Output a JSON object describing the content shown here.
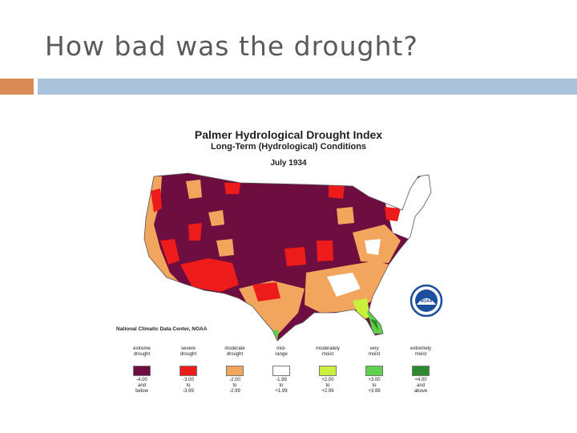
{
  "slide": {
    "title": "How bad was the drought?"
  },
  "map": {
    "title": "Palmer Hydrological Drought Index",
    "subtitle": "Long-Term (Hydrological) Conditions",
    "date": "July 1934",
    "credit": "National Climatic Data Center, NOAA",
    "logo_text": "NOAA"
  },
  "legend": [
    {
      "label": "extreme\ndrought",
      "range": "-4.00\nand\nbelow",
      "color": "#6e0d3f"
    },
    {
      "label": "severe\ndrought",
      "range": "-3.00\nto\n-3.99",
      "color": "#ee1b1b"
    },
    {
      "label": "moderate\ndrought",
      "range": "-2.00\nto\n-2.99",
      "color": "#f2a55c"
    },
    {
      "label": "mid-\nrange",
      "range": "-1.99\nto\n+1.99",
      "color": "#ffffff"
    },
    {
      "label": "moderately\nmoist",
      "range": "+2.00\nto\n+2.99",
      "color": "#c8f03c"
    },
    {
      "label": "very\nmoist",
      "range": "+3.00\nto\n+3.99",
      "color": "#5ed24a"
    },
    {
      "label": "extremely\nmoist",
      "range": "+4.00\nand\nabove",
      "color": "#2e8a2e"
    }
  ]
}
